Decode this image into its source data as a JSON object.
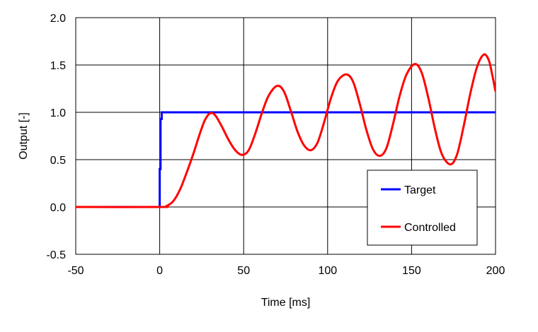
{
  "chart_data": {
    "type": "line",
    "title": "",
    "xlabel": "Time [ms]",
    "ylabel": "Output [-]",
    "xlim": [
      -50,
      200
    ],
    "ylim": [
      -0.5,
      2.0
    ],
    "xticks": [
      -50,
      0,
      50,
      100,
      150,
      200
    ],
    "xtick_labels": [
      "-50",
      "0",
      "50",
      "100",
      "150",
      "200"
    ],
    "yticks": [
      -0.5,
      0,
      0.5,
      1.0,
      1.5,
      2.0
    ],
    "ytick_labels": [
      "-0.5",
      "0.0",
      "0.5",
      "1.0",
      "1.5",
      "2.0"
    ],
    "grid": true,
    "legend_position": "bottom-right",
    "series": [
      {
        "name": "Target",
        "color": "#0000ff",
        "x": [
          -50,
          0,
          0,
          0.5,
          0.5,
          1.2,
          1.2,
          200
        ],
        "y": [
          0,
          0,
          0.4,
          0.4,
          0.93,
          0.93,
          1.0,
          1.0
        ]
      },
      {
        "name": "Controlled",
        "color": "#ff0000",
        "x": [
          -50,
          0,
          4,
          8,
          12,
          16,
          20,
          24,
          27,
          30,
          33,
          37,
          41,
          45,
          49,
          53,
          57,
          61,
          65,
          70,
          74,
          78,
          82,
          86,
          90,
          94,
          98,
          102,
          106,
          111,
          115,
          119,
          123,
          127,
          131,
          135,
          139,
          143,
          147,
          152,
          156,
          160,
          164,
          168,
          173,
          177,
          181,
          185,
          189,
          193,
          196,
          198,
          200
        ],
        "y": [
          0,
          0,
          0.01,
          0.06,
          0.18,
          0.36,
          0.56,
          0.78,
          0.92,
          0.99,
          0.97,
          0.85,
          0.71,
          0.6,
          0.55,
          0.6,
          0.78,
          1.0,
          1.18,
          1.28,
          1.22,
          1.02,
          0.8,
          0.65,
          0.6,
          0.68,
          0.9,
          1.15,
          1.33,
          1.4,
          1.33,
          1.1,
          0.82,
          0.61,
          0.54,
          0.62,
          0.88,
          1.18,
          1.4,
          1.51,
          1.42,
          1.15,
          0.82,
          0.56,
          0.45,
          0.55,
          0.85,
          1.2,
          1.48,
          1.61,
          1.55,
          1.4,
          1.22
        ]
      }
    ]
  }
}
